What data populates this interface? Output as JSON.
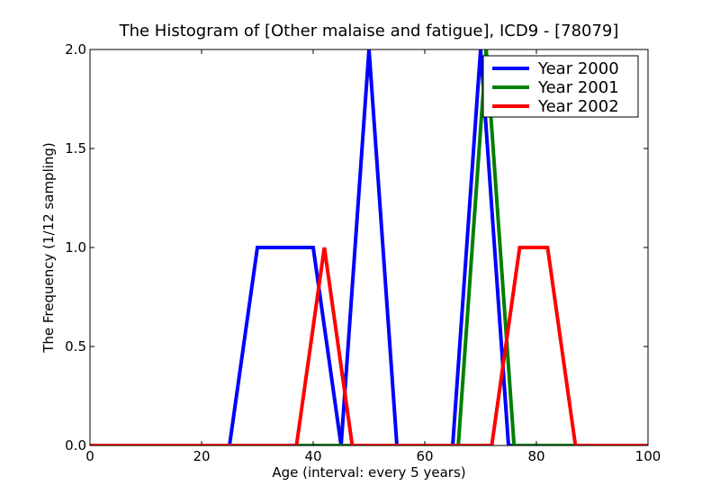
{
  "chart_data": {
    "type": "line",
    "title": "The Histogram of [Other malaise and fatigue], ICD9 - [78079]",
    "xlabel": "Age (interval: every 5 years)",
    "ylabel": "The Frequency (1/12 sampling)",
    "xlim": [
      0,
      100
    ],
    "ylim": [
      0,
      2.0
    ],
    "x_ticks": [
      "0",
      "20",
      "40",
      "60",
      "80",
      "100"
    ],
    "y_ticks": [
      "0.0",
      "0.5",
      "1.0",
      "1.5",
      "2.0"
    ],
    "grid": false,
    "legend_position": "top-right",
    "series": [
      {
        "name": "Year 2000",
        "color": "#0000ff",
        "points": [
          [
            0,
            0
          ],
          [
            25,
            0
          ],
          [
            30,
            1
          ],
          [
            35,
            1
          ],
          [
            40,
            1
          ],
          [
            45,
            0
          ],
          [
            50,
            2
          ],
          [
            55,
            0
          ],
          [
            60,
            0
          ],
          [
            65,
            0
          ],
          [
            70,
            2
          ],
          [
            75,
            0
          ],
          [
            80,
            0
          ],
          [
            85,
            0
          ],
          [
            90,
            0
          ],
          [
            95,
            0
          ],
          [
            100,
            0
          ]
        ]
      },
      {
        "name": "Year 2001",
        "color": "#008000",
        "points": [
          [
            0,
            0
          ],
          [
            66,
            0
          ],
          [
            71,
            2
          ],
          [
            76,
            0
          ],
          [
            100,
            0
          ]
        ]
      },
      {
        "name": "Year 2002",
        "color": "#ff0000",
        "points": [
          [
            0,
            0
          ],
          [
            37,
            0
          ],
          [
            42,
            1
          ],
          [
            47,
            0
          ],
          [
            72,
            0
          ],
          [
            77,
            1
          ],
          [
            82,
            1
          ],
          [
            87,
            0
          ],
          [
            100,
            0
          ]
        ]
      }
    ]
  }
}
